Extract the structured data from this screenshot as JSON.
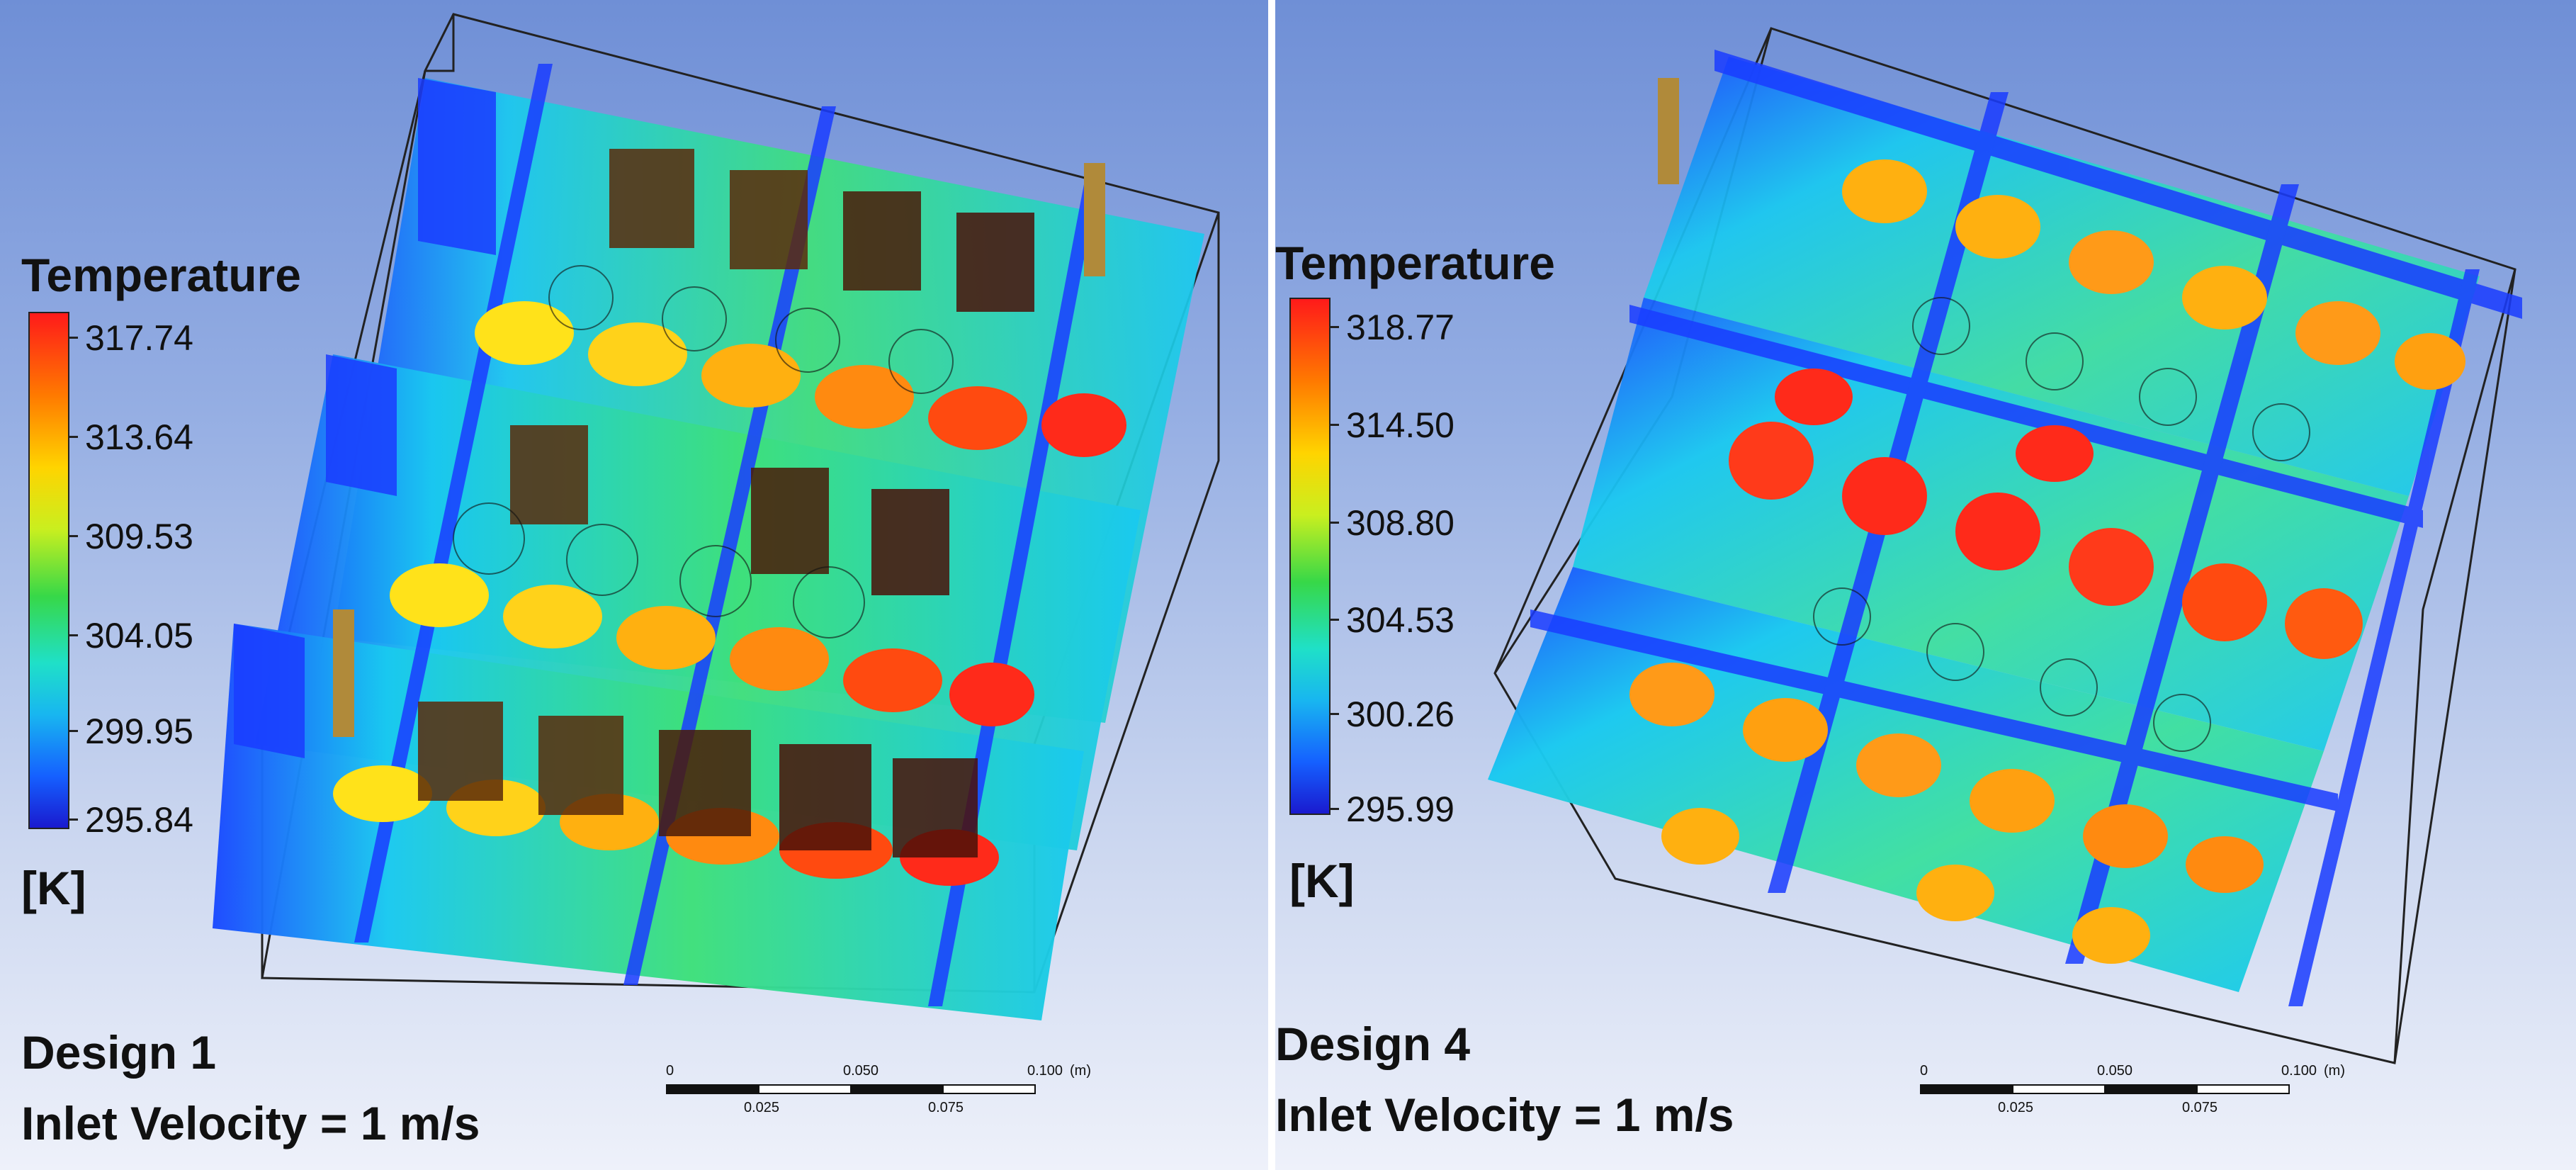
{
  "panels": [
    {
      "legend": {
        "title": "Temperature",
        "ticks": [
          "317.74",
          "313.64",
          "309.53",
          "304.05",
          "299.95",
          "295.84"
        ],
        "unit": "[K]"
      },
      "caption": {
        "design": "Design 1",
        "velocity": "Inlet Velocity = 1 m/s"
      },
      "scale": {
        "top": [
          "0",
          "0.050",
          "0.100",
          "(m)"
        ],
        "bottom": [
          "0.025",
          "0.075"
        ]
      }
    },
    {
      "legend": {
        "title": "Temperature",
        "ticks": [
          "318.77",
          "314.50",
          "308.80",
          "304.53",
          "300.26",
          "295.99"
        ],
        "unit": "[K]"
      },
      "caption": {
        "design": "Design 4",
        "velocity": "Inlet Velocity = 1 m/s"
      },
      "scale": {
        "top": [
          "0",
          "0.050",
          "0.100",
          "(m)"
        ],
        "bottom": [
          "0.025",
          "0.075"
        ]
      }
    }
  ],
  "colors": {
    "hot": "#ff2a1a",
    "warm": "#ff9a18",
    "mid": "#ffd21a",
    "cool": "#1ad6e6",
    "cold": "#1a3cff"
  }
}
